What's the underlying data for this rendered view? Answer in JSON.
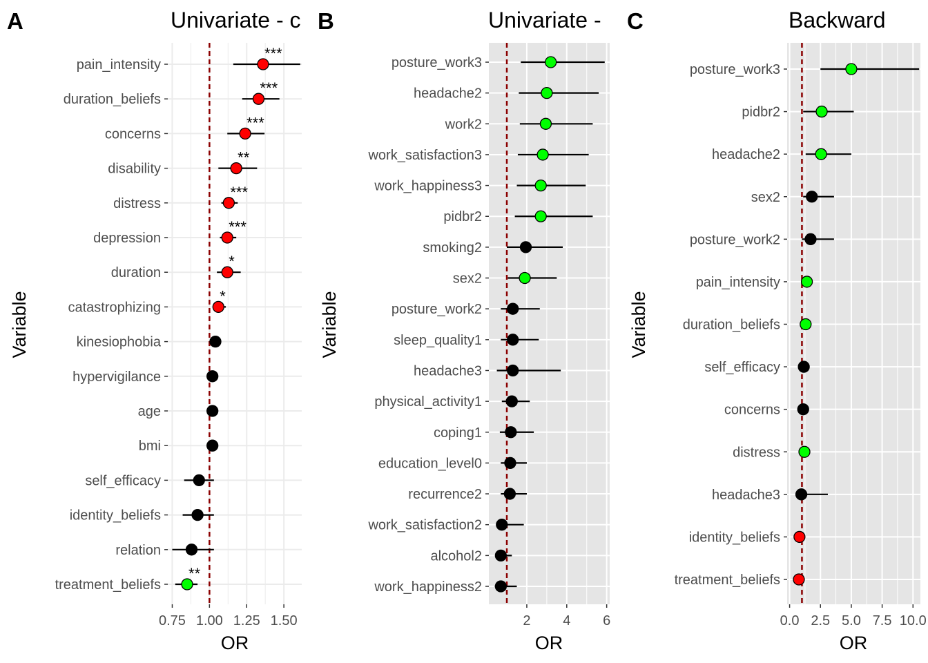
{
  "chart_data": [
    {
      "type": "scatter",
      "panel_label": "A",
      "title": "Univariate - c",
      "xlabel": "OR",
      "ylabel": "Variable",
      "background": "white",
      "grid": true,
      "xlim": [
        0.72,
        1.62
      ],
      "xticks": [
        0.75,
        1.0,
        1.25,
        1.5
      ],
      "xtick_labels": [
        "0.75",
        "1.00",
        "1.25",
        "1.50"
      ],
      "reference_line": 1.0,
      "categories": [
        "pain_intensity",
        "duration_beliefs",
        "concerns",
        "disability",
        "distress",
        "depression",
        "duration",
        "catastrophizing",
        "kinesiophobia",
        "hypervigilance",
        "age",
        "bmi",
        "self_efficacy",
        "identity_beliefs",
        "relation",
        "treatment_beliefs"
      ],
      "or": [
        1.36,
        1.33,
        1.24,
        1.18,
        1.13,
        1.12,
        1.12,
        1.06,
        1.04,
        1.02,
        1.02,
        1.02,
        0.93,
        0.92,
        0.88,
        0.85
      ],
      "ci_low": [
        1.16,
        1.22,
        1.12,
        1.06,
        1.08,
        1.07,
        1.05,
        1.03,
        1.04,
        1.02,
        1.02,
        0.99,
        0.83,
        0.82,
        0.75,
        0.77
      ],
      "ci_high": [
        1.61,
        1.47,
        1.37,
        1.32,
        1.19,
        1.18,
        1.21,
        1.11,
        1.04,
        1.02,
        1.02,
        1.05,
        1.03,
        1.03,
        1.03,
        0.92
      ],
      "colors": [
        "red",
        "red",
        "red",
        "red",
        "red",
        "red",
        "red",
        "red",
        "black",
        "black",
        "black",
        "black",
        "black",
        "black",
        "black",
        "lime"
      ],
      "significance": [
        "***",
        "***",
        "***",
        "**",
        "***",
        "***",
        "*",
        "*",
        "",
        "",
        "",
        "",
        "",
        "",
        "",
        "**"
      ]
    },
    {
      "type": "scatter",
      "panel_label": "B",
      "title": "Univariate -",
      "xlabel": "OR",
      "ylabel": "Variable",
      "background": "gray",
      "grid": true,
      "xlim": [
        0.1,
        6.15
      ],
      "xticks": [
        2,
        4,
        6
      ],
      "xtick_labels": [
        "2",
        "4",
        "6"
      ],
      "reference_line": 1.0,
      "categories": [
        "posture_work3",
        "headache2",
        "work2",
        "work_satisfaction3",
        "work_happiness3",
        "pidbr2",
        "smoking2",
        "sex2",
        "posture_work2",
        "sleep_quality1",
        "headache3",
        "physical_activity1",
        "coping1",
        "education_level0",
        "recurrence2",
        "work_satisfaction2",
        "alcohol2",
        "work_happiness2"
      ],
      "or": [
        3.2,
        3.0,
        2.95,
        2.8,
        2.7,
        2.7,
        1.95,
        1.9,
        1.3,
        1.3,
        1.3,
        1.25,
        1.2,
        1.17,
        1.15,
        0.75,
        0.7,
        0.7
      ],
      "ci_low": [
        1.7,
        1.6,
        1.65,
        1.55,
        1.5,
        1.4,
        1.0,
        1.05,
        0.7,
        0.7,
        0.5,
        0.75,
        0.65,
        0.7,
        0.7,
        0.5,
        0.5,
        0.4
      ],
      "ci_high": [
        5.9,
        5.6,
        5.3,
        5.1,
        4.95,
        5.3,
        3.8,
        3.5,
        2.65,
        2.6,
        3.7,
        2.15,
        2.35,
        2.0,
        2.0,
        1.85,
        1.25,
        1.5
      ],
      "colors": [
        "lime",
        "lime",
        "lime",
        "lime",
        "lime",
        "lime",
        "black",
        "lime",
        "black",
        "black",
        "black",
        "black",
        "black",
        "black",
        "black",
        "black",
        "black",
        "black"
      ]
    },
    {
      "type": "scatter",
      "panel_label": "C",
      "title": "Backward",
      "xlabel": "OR",
      "ylabel": "Variable",
      "background": "gray",
      "grid": true,
      "xlim": [
        -0.2,
        10.6
      ],
      "xticks": [
        0.0,
        2.5,
        5.0,
        7.5,
        10.0
      ],
      "xtick_labels": [
        "0.0",
        "2.5",
        "5.0",
        "7.5",
        "10.0"
      ],
      "reference_line": 1.0,
      "categories": [
        "posture_work3",
        "pidbr2",
        "headache2",
        "sex2",
        "posture_work2",
        "pain_intensity",
        "duration_beliefs",
        "self_efficacy",
        "concerns",
        "distress",
        "headache3",
        "identity_beliefs",
        "treatment_beliefs"
      ],
      "or": [
        5.0,
        2.6,
        2.55,
        1.8,
        1.7,
        1.4,
        1.3,
        1.15,
        1.1,
        1.2,
        0.95,
        0.8,
        0.75
      ],
      "ci_low": [
        2.5,
        1.1,
        1.3,
        1.1,
        1.0,
        1.4,
        1.3,
        1.15,
        1.1,
        1.2,
        0.6,
        0.8,
        0.75
      ],
      "ci_high": [
        10.5,
        5.2,
        5.0,
        3.6,
        3.6,
        1.4,
        1.3,
        1.15,
        1.1,
        1.2,
        3.1,
        0.8,
        0.75
      ],
      "colors": [
        "lime",
        "lime",
        "lime",
        "black",
        "black",
        "lime",
        "lime",
        "black",
        "black",
        "lime",
        "black",
        "red",
        "red"
      ]
    }
  ]
}
